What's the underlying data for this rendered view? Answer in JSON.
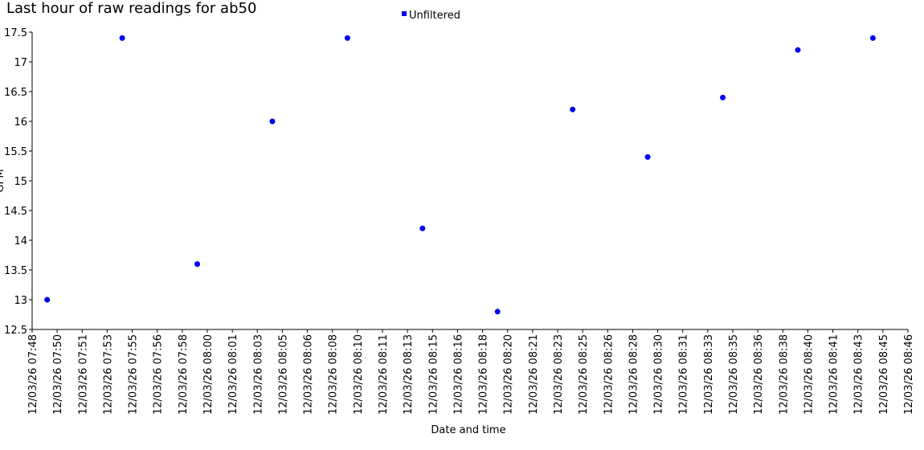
{
  "chart_data": {
    "type": "scatter",
    "title": "Last hour of raw readings for ab50",
    "x_label": "Date and time",
    "y_label": "GPM",
    "series": [
      {
        "name": "Unfiltered",
        "color": "#0000ee",
        "x": [
          "12/03/26 07:49",
          "12/03/26 07:54",
          "12/03/26 07:59",
          "12/03/26 08:04",
          "12/03/26 08:09",
          "12/03/26 08:14",
          "12/03/26 08:19",
          "12/03/26 08:24",
          "12/03/26 08:29",
          "12/03/26 08:34",
          "12/03/26 08:39",
          "12/03/26 08:44"
        ],
        "values": [
          13,
          17.4,
          13.6,
          16,
          17.4,
          14.2,
          12.8,
          16.2,
          15.4,
          16.4,
          17.2,
          17.4
        ]
      }
    ],
    "xlim": [
      "12/03/26 07:48:00",
      "12/03/26 08:46:20"
    ],
    "xticks": [
      {
        "value": "12/03/26 07:48:00",
        "label": "12/03/26 07:48"
      },
      {
        "value": "12/03/26 07:49:40",
        "label": "12/03/26 07:50"
      },
      {
        "value": "12/03/26 07:51:20",
        "label": "12/03/26 07:51"
      },
      {
        "value": "12/03/26 07:53:00",
        "label": "12/03/26 07:53"
      },
      {
        "value": "12/03/26 07:54:40",
        "label": "12/03/26 07:55"
      },
      {
        "value": "12/03/26 07:56:20",
        "label": "12/03/26 07:56"
      },
      {
        "value": "12/03/26 07:58:00",
        "label": "12/03/26 07:58"
      },
      {
        "value": "12/03/26 07:59:40",
        "label": "12/03/26 08:00"
      },
      {
        "value": "12/03/26 08:01:20",
        "label": "12/03/26 08:01"
      },
      {
        "value": "12/03/26 08:03:00",
        "label": "12/03/26 08:03"
      },
      {
        "value": "12/03/26 08:04:40",
        "label": "12/03/26 08:05"
      },
      {
        "value": "12/03/26 08:06:20",
        "label": "12/03/26 08:06"
      },
      {
        "value": "12/03/26 08:08:00",
        "label": "12/03/26 08:08"
      },
      {
        "value": "12/03/26 08:09:40",
        "label": "12/03/26 08:10"
      },
      {
        "value": "12/03/26 08:11:20",
        "label": "12/03/26 08:11"
      },
      {
        "value": "12/03/26 08:13:00",
        "label": "12/03/26 08:13"
      },
      {
        "value": "12/03/26 08:14:40",
        "label": "12/03/26 08:15"
      },
      {
        "value": "12/03/26 08:16:20",
        "label": "12/03/26 08:16"
      },
      {
        "value": "12/03/26 08:18:00",
        "label": "12/03/26 08:18"
      },
      {
        "value": "12/03/26 08:19:40",
        "label": "12/03/26 08:20"
      },
      {
        "value": "12/03/26 08:21:20",
        "label": "12/03/26 08:21"
      },
      {
        "value": "12/03/26 08:23:00",
        "label": "12/03/26 08:23"
      },
      {
        "value": "12/03/26 08:24:40",
        "label": "12/03/26 08:25"
      },
      {
        "value": "12/03/26 08:26:20",
        "label": "12/03/26 08:26"
      },
      {
        "value": "12/03/26 08:28:00",
        "label": "12/03/26 08:28"
      },
      {
        "value": "12/03/26 08:29:40",
        "label": "12/03/26 08:30"
      },
      {
        "value": "12/03/26 08:31:20",
        "label": "12/03/26 08:31"
      },
      {
        "value": "12/03/26 08:33:00",
        "label": "12/03/26 08:33"
      },
      {
        "value": "12/03/26 08:34:40",
        "label": "12/03/26 08:35"
      },
      {
        "value": "12/03/26 08:36:20",
        "label": "12/03/26 08:36"
      },
      {
        "value": "12/03/26 08:38:00",
        "label": "12/03/26 08:38"
      },
      {
        "value": "12/03/26 08:39:40",
        "label": "12/03/26 08:40"
      },
      {
        "value": "12/03/26 08:41:20",
        "label": "12/03/26 08:41"
      },
      {
        "value": "12/03/26 08:43:00",
        "label": "12/03/26 08:43"
      },
      {
        "value": "12/03/26 08:44:40",
        "label": "12/03/26 08:45"
      },
      {
        "value": "12/03/26 08:46:20",
        "label": "12/03/26 08:46"
      }
    ],
    "ylim": [
      12.5,
      17.5
    ],
    "yticks": [
      {
        "value": 12.5,
        "label": "12.5"
      },
      {
        "value": 13,
        "label": "13"
      },
      {
        "value": 13.5,
        "label": "13.5"
      },
      {
        "value": 14,
        "label": "14"
      },
      {
        "value": 14.5,
        "label": "14.5"
      },
      {
        "value": 15,
        "label": "15"
      },
      {
        "value": 15.5,
        "label": "15.5"
      },
      {
        "value": 16,
        "label": "16"
      },
      {
        "value": 16.5,
        "label": "16.5"
      },
      {
        "value": 17,
        "label": "17"
      },
      {
        "value": 17.5,
        "label": "17.5"
      }
    ],
    "grid": false,
    "legend": "top"
  }
}
